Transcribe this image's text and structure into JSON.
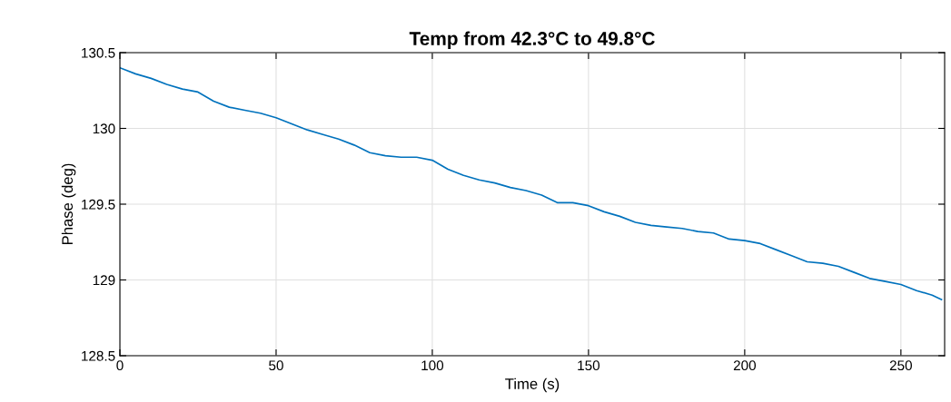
{
  "chart_data": {
    "type": "line",
    "title": "Temp from 42.3°C to 49.8°C",
    "xlabel": "Time (s)",
    "ylabel": "Phase (deg)",
    "x": [
      0,
      5,
      10,
      15,
      20,
      25,
      30,
      35,
      40,
      45,
      50,
      55,
      60,
      65,
      70,
      75,
      80,
      85,
      90,
      95,
      100,
      105,
      110,
      115,
      120,
      125,
      130,
      135,
      140,
      145,
      150,
      155,
      160,
      165,
      170,
      175,
      180,
      185,
      190,
      195,
      200,
      205,
      210,
      215,
      220,
      225,
      230,
      235,
      240,
      245,
      250,
      255,
      260,
      263
    ],
    "series": [
      {
        "color": "#0072bd",
        "values": [
          130.4,
          130.36,
          130.33,
          130.29,
          130.26,
          130.24,
          130.18,
          130.14,
          130.12,
          130.1,
          130.07,
          130.03,
          129.99,
          129.96,
          129.93,
          129.89,
          129.84,
          129.82,
          129.81,
          129.81,
          129.79,
          129.73,
          129.69,
          129.66,
          129.64,
          129.61,
          129.59,
          129.56,
          129.51,
          129.51,
          129.49,
          129.45,
          129.42,
          129.38,
          129.36,
          129.35,
          129.34,
          129.32,
          129.31,
          129.27,
          129.26,
          129.24,
          129.2,
          129.16,
          129.12,
          129.11,
          129.09,
          129.05,
          129.01,
          128.99,
          128.97,
          128.93,
          128.9,
          128.87
        ]
      }
    ],
    "xlim": [
      0,
      264
    ],
    "ylim": [
      128.5,
      130.5
    ],
    "xticks": [
      0,
      50,
      100,
      150,
      200,
      250
    ],
    "yticks": [
      128.5,
      129,
      129.5,
      130,
      130.5
    ],
    "grid": true,
    "line_style": "solid",
    "marker": "none"
  }
}
